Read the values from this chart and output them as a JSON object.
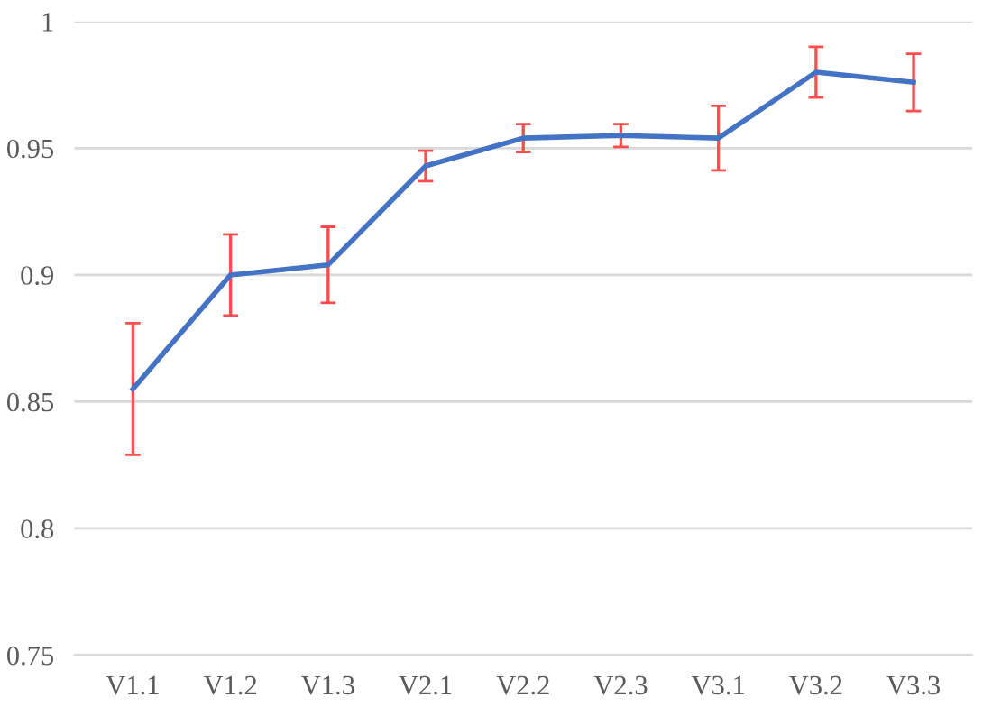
{
  "chart_data": {
    "type": "line",
    "categories": [
      "V1.1",
      "V1.2",
      "V1.3",
      "V2.1",
      "V2.2",
      "V2.3",
      "V3.1",
      "V3.2",
      "V3.3"
    ],
    "series": [
      {
        "color": "#4472c4",
        "values": [
          0.855,
          0.9,
          0.904,
          0.943,
          0.954,
          0.955,
          0.954,
          0.98,
          0.976
        ],
        "errors": [
          0.026,
          0.016,
          0.015,
          0.006,
          0.0055,
          0.0045,
          0.0127,
          0.01,
          0.0113
        ]
      }
    ],
    "ylim": [
      0.75,
      1
    ],
    "yticks": [
      0.75,
      0.8,
      0.85,
      0.9,
      0.95,
      1
    ],
    "grid": "y",
    "marker": "none",
    "line_style": "solid"
  }
}
